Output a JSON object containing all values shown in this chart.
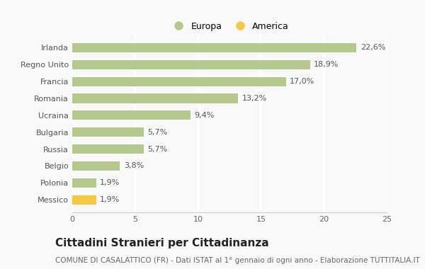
{
  "categories": [
    "Messico",
    "Polonia",
    "Belgio",
    "Russia",
    "Bulgaria",
    "Ucraina",
    "Romania",
    "Francia",
    "Regno Unito",
    "Irlanda"
  ],
  "values": [
    1.9,
    1.9,
    3.8,
    5.7,
    5.7,
    9.4,
    13.2,
    17.0,
    18.9,
    22.6
  ],
  "labels": [
    "1,9%",
    "1,9%",
    "3,8%",
    "5,7%",
    "5,7%",
    "9,4%",
    "13,2%",
    "17,0%",
    "18,9%",
    "22,6%"
  ],
  "bar_colors": [
    "#f5c842",
    "#b5c98e",
    "#b5c98e",
    "#b5c98e",
    "#b5c98e",
    "#b5c98e",
    "#b5c98e",
    "#b5c98e",
    "#b5c98e",
    "#b5c98e"
  ],
  "europa_color": "#b5c98e",
  "america_color": "#f5c842",
  "xlim": [
    0,
    25
  ],
  "background_color": "#f9f9f9",
  "grid_color": "#ffffff",
  "title": "Cittadini Stranieri per Cittadinanza",
  "subtitle": "COMUNE DI CASALATTICO (FR) - Dati ISTAT al 1° gennaio di ogni anno - Elaborazione TUTTITALIA.IT",
  "legend_europa": "Europa",
  "legend_america": "America",
  "title_fontsize": 11,
  "subtitle_fontsize": 7.5,
  "tick_fontsize": 8,
  "label_fontsize": 8,
  "legend_fontsize": 9
}
